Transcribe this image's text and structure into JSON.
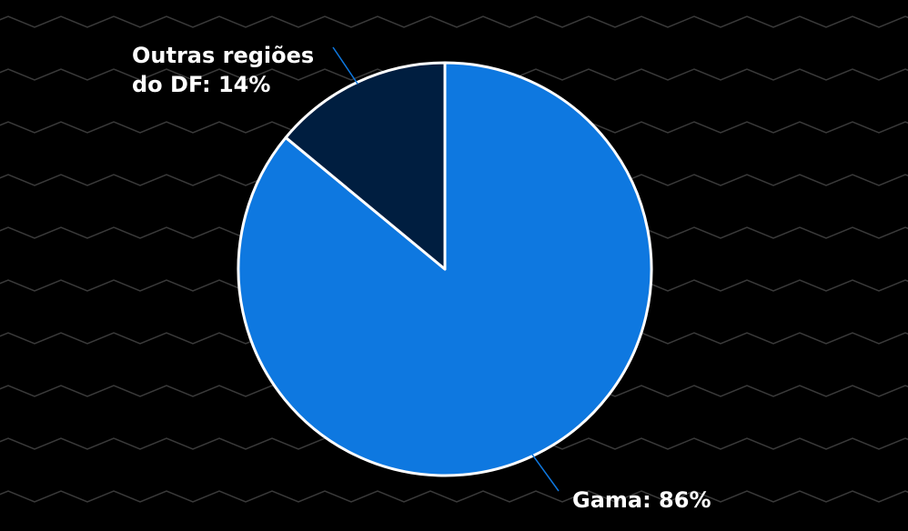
{
  "colors": {
    "background": "#000000",
    "pattern_line": "#3a3a3a",
    "outline": "#ffffff",
    "leader_line": "#0e78e0"
  },
  "chart_data": {
    "type": "pie",
    "slices": [
      {
        "label": "Gama",
        "value": 86,
        "display": "Gama: 86%",
        "color": "#0e78e0"
      },
      {
        "label": "Outras regiões do DF",
        "value": 14,
        "display": "Outras regiões do DF: 14%",
        "display_lines": [
          "Outras regiões",
          "do DF: 14%"
        ],
        "color": "#001e40"
      }
    ],
    "start_angle": "12 o'clock",
    "direction": "clockwise",
    "legend": "none"
  }
}
